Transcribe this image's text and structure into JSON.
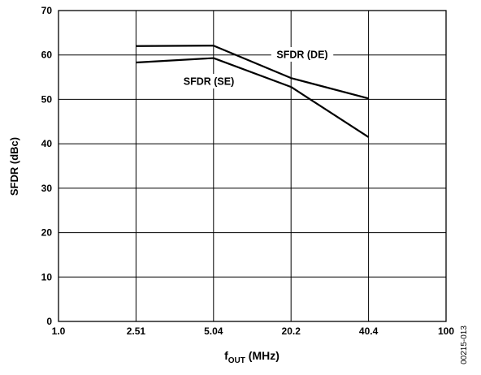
{
  "chart_data": {
    "type": "line",
    "xlabel_main": "f",
    "xlabel_sub": "OUT",
    "xlabel_units": " (MHz)",
    "ylabel": "SFDR (dBc)",
    "x_tick_labels": [
      "1.0",
      "2.51",
      "5.04",
      "20.2",
      "40.4",
      "100"
    ],
    "y_tick_labels": [
      "0",
      "10",
      "20",
      "30",
      "40",
      "50",
      "60",
      "70"
    ],
    "ylim": [
      0,
      70
    ],
    "grid": true,
    "series": [
      {
        "name": "SFDR (DE)",
        "x": [
          "2.51",
          "5.04",
          "20.2",
          "40.4"
        ],
        "values": [
          62,
          62.1,
          54.8,
          50.2
        ]
      },
      {
        "name": "SFDR (SE)",
        "x": [
          "2.51",
          "5.04",
          "20.2",
          "40.4"
        ],
        "values": [
          58.3,
          59.3,
          52.8,
          41.5
        ]
      }
    ],
    "figure_code": "00215-013"
  }
}
